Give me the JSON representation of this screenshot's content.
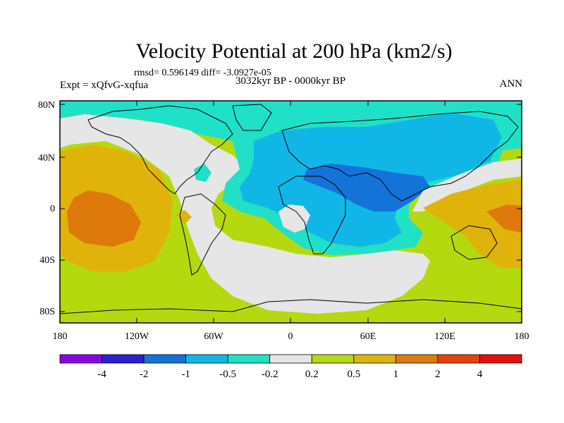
{
  "title": "Velocity Potential at 200 hPa (km2/s)",
  "stats": "rmsd= 0.596149 diff= -3.0927e-05",
  "left_label": "Expt = xQfvG-xqfua",
  "center_label": "3032kyr BP - 0000kyr BP",
  "right_label": "ANN",
  "lat_ticks": [
    "80N",
    "40N",
    "0",
    "40S",
    "80S"
  ],
  "lon_ticks": [
    "180",
    "120W",
    "60W",
    "0",
    "60E",
    "120E",
    "180"
  ],
  "colorbar": {
    "colors": [
      "#8a00e6",
      "#2b1fd6",
      "#1473d9",
      "#10b7e6",
      "#20e0c8",
      "#e6e6e6",
      "#b5d90f",
      "#e0b30a",
      "#de7a0c",
      "#e8420c",
      "#e80d0d"
    ],
    "labels": [
      "-4",
      "-2",
      "-1",
      "-0.5",
      "-0.2",
      "0.2",
      "0.5",
      "1",
      "2",
      "4"
    ]
  },
  "palette": {
    "cyan": "#20e0c8",
    "light_blue": "#10b7e6",
    "blue": "#1473d9",
    "gray": "#e6e6e6",
    "green": "#b5d90f",
    "yellow": "#e0b30a",
    "orange": "#de7a0c"
  }
}
